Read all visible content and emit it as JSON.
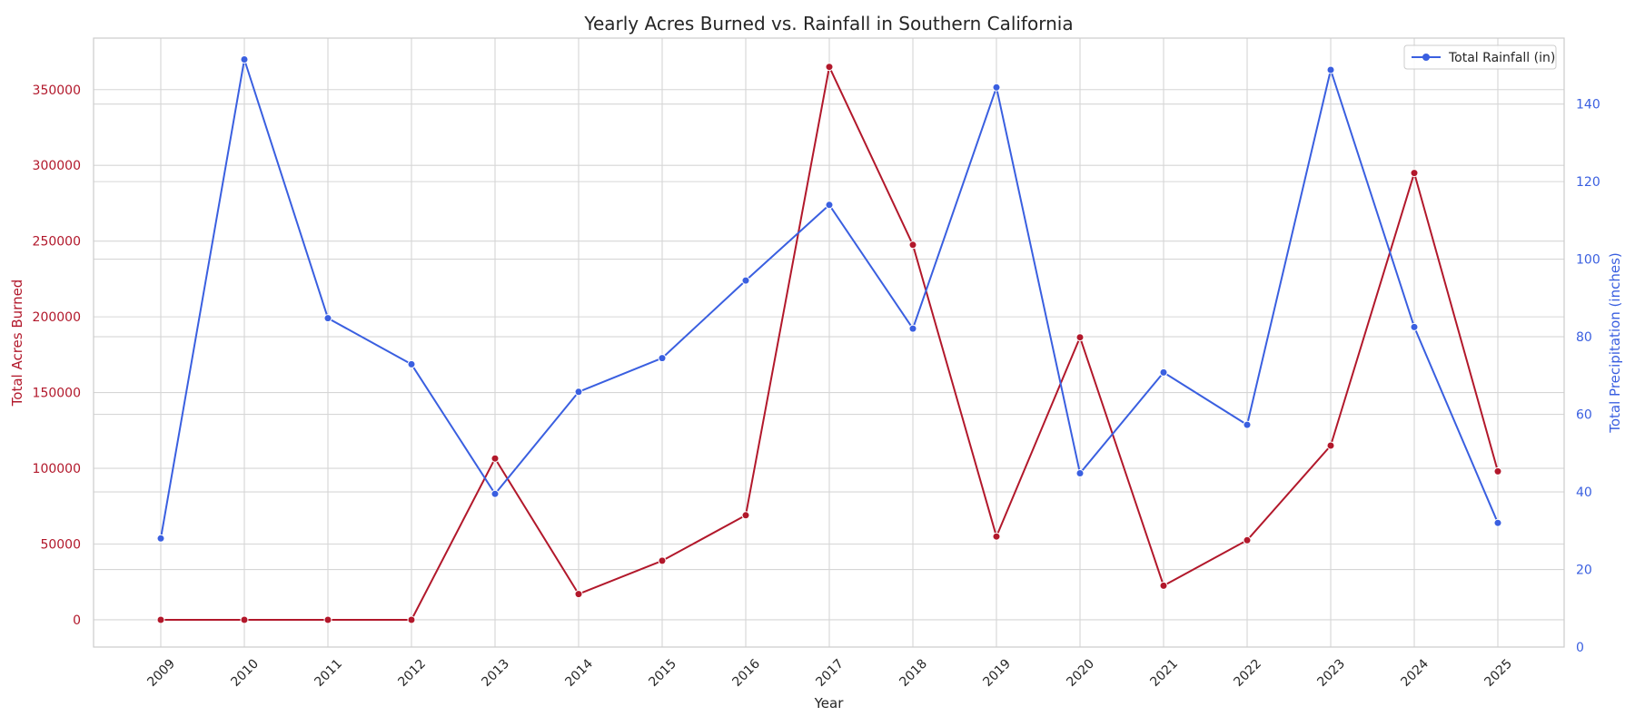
{
  "chart_data": {
    "type": "line",
    "title": "Yearly Acres Burned vs. Rainfall in Southern California",
    "xlabel": "Year",
    "ylabel_left": "Total Acres Burned",
    "ylabel_right": "Total Precipitation (inches)",
    "x": [
      "2009",
      "2010",
      "2011",
      "2012",
      "2013",
      "2014",
      "2015",
      "2016",
      "2017",
      "2018",
      "2019",
      "2020",
      "2021",
      "2022",
      "2023",
      "2024",
      "2025"
    ],
    "ylim_left": [
      -18000,
      384000
    ],
    "ylim_right": [
      0,
      157
    ],
    "yticks_left": [
      0,
      50000,
      100000,
      150000,
      200000,
      250000,
      300000,
      350000
    ],
    "yticks_right": [
      0,
      20,
      40,
      60,
      80,
      100,
      120,
      140
    ],
    "grid": true,
    "legend_position": "top-right",
    "series": [
      {
        "axis": "left",
        "color": "#b2182b",
        "values": [
          0,
          0,
          0,
          0,
          106500,
          17000,
          39000,
          69000,
          365000,
          247500,
          55000,
          186500,
          22500,
          52500,
          115000,
          295000,
          98000
        ]
      },
      {
        "name": "Total Rainfall (in)",
        "axis": "right",
        "color": "#3a5fe0",
        "values": [
          28,
          151.5,
          84.8,
          72.9,
          39.5,
          65.8,
          74.5,
          94.5,
          114,
          82.1,
          144.3,
          44.8,
          70.8,
          57.3,
          148.8,
          82.5,
          32
        ]
      }
    ]
  }
}
